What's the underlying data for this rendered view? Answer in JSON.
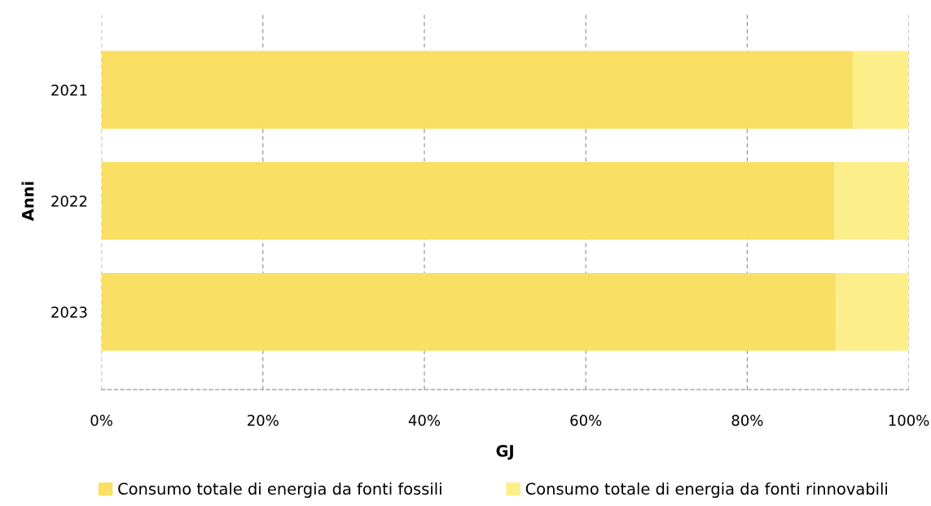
{
  "chart_data": {
    "type": "bar",
    "orientation": "horizontal",
    "stacked": true,
    "xlabel": "GJ",
    "ylabel": "Anni",
    "categories": [
      "2021",
      "2022",
      "2023"
    ],
    "series": [
      {
        "name": "Consumo totale di energia da fonti fossili",
        "color": "#f9df63",
        "values": [
          93.1,
          90.8,
          91.0
        ]
      },
      {
        "name": "Consumo totale di energia da fonti rinnovabili",
        "color": "#fcef8a",
        "values": [
          6.9,
          9.2,
          9.0
        ]
      }
    ],
    "xlim": [
      0,
      100
    ],
    "xticks": [
      {
        "value": 0,
        "label": "0%"
      },
      {
        "value": 20,
        "label": "20%"
      },
      {
        "value": 40,
        "label": "40%"
      },
      {
        "value": 60,
        "label": "60%"
      },
      {
        "value": 80,
        "label": "80%"
      },
      {
        "value": 100,
        "label": "100%"
      }
    ],
    "grid": "x",
    "legend": "bottom"
  }
}
